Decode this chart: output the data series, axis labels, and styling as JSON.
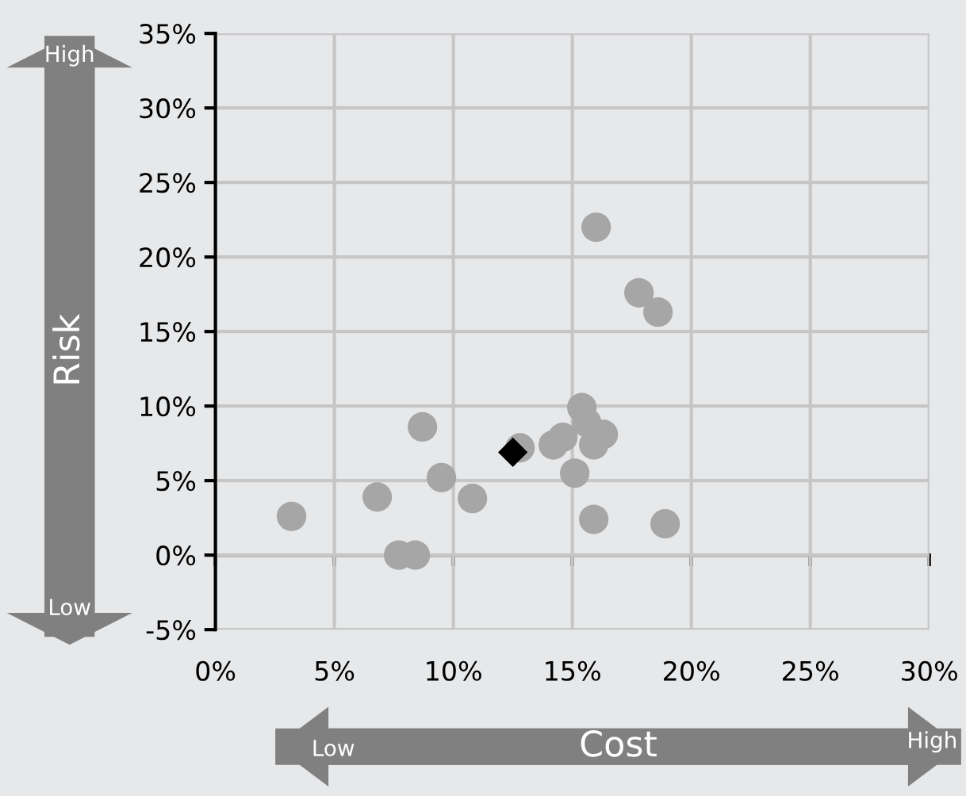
{
  "chart_data": {
    "type": "scatter",
    "xlabel": "Cost",
    "ylabel": "Risk",
    "annotations": [
      "High",
      "Low",
      "High",
      "Low"
    ],
    "series": [
      {
        "color": "#a6a6a6",
        "marker": "circle",
        "x": [
          3.2,
          6.8,
          7.7,
          8.4,
          8.7,
          9.5,
          10.8,
          12.8,
          14.2,
          14.6,
          15.4,
          15.6,
          16.3,
          15.9,
          15.1,
          15.9,
          16.0,
          17.8,
          18.6,
          18.9
        ],
        "values": [
          2.6,
          3.9,
          0,
          0,
          8.6,
          5.2,
          3.8,
          7.2,
          7.4,
          7.9,
          9.9,
          8.9,
          8.1,
          7.4,
          5.5,
          2.4,
          22.0,
          17.6,
          16.3,
          2.1
        ]
      },
      {
        "color": "#000000",
        "marker": "diamond",
        "x": [
          12.5
        ],
        "values": [
          6.9
        ]
      }
    ],
    "xlim": [
      0,
      30
    ],
    "ylim": [
      -5,
      35
    ],
    "xticks": [
      {
        "value": 0,
        "label": "0%"
      },
      {
        "value": 5,
        "label": "5%"
      },
      {
        "value": 10,
        "label": "10%"
      },
      {
        "value": 15,
        "label": "15%"
      },
      {
        "value": 20,
        "label": "20%"
      },
      {
        "value": 25,
        "label": "25%"
      },
      {
        "value": 30,
        "label": "30%"
      }
    ],
    "yticks": [
      {
        "value": -5,
        "label": "-5%"
      },
      {
        "value": 0,
        "label": "0%"
      },
      {
        "value": 5,
        "label": "5%"
      },
      {
        "value": 10,
        "label": "10%"
      },
      {
        "value": 15,
        "label": "15%"
      },
      {
        "value": 20,
        "label": "20%"
      },
      {
        "value": 25,
        "label": "25%"
      },
      {
        "value": 30,
        "label": "30%"
      },
      {
        "value": 35,
        "label": "35%"
      }
    ],
    "grid": true,
    "legend": false
  }
}
